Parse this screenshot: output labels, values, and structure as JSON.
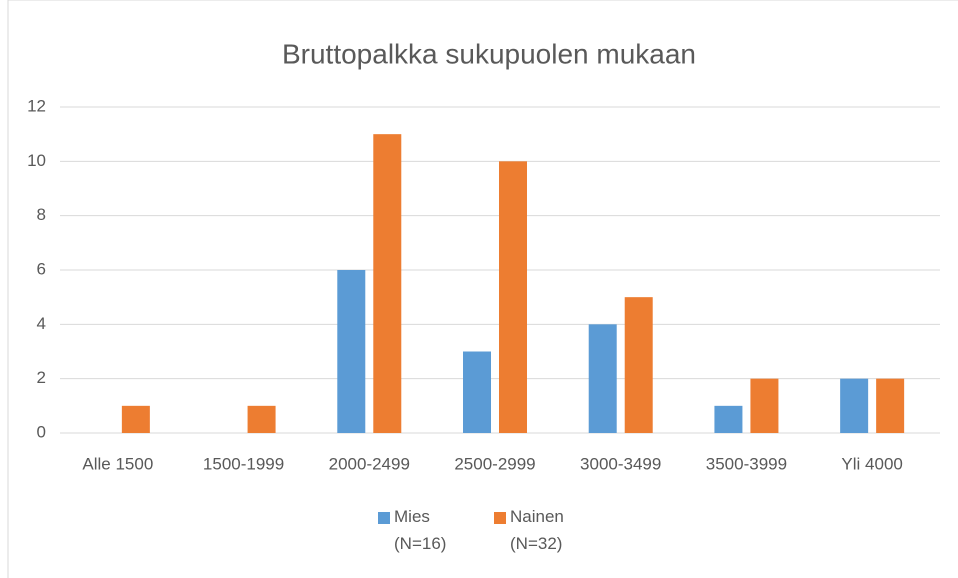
{
  "chart_data": {
    "type": "bar",
    "title": "Bruttopalkka sukupuolen mukaan",
    "categories": [
      "Alle 1500",
      "1500-1999",
      "2000-2499",
      "2500-2999",
      "3000-3499",
      "3500-3999",
      "Yli 4000"
    ],
    "series": [
      {
        "name": "Mies (N=16)",
        "color": "#5b9bd5",
        "values": [
          0,
          0,
          6,
          3,
          4,
          1,
          2
        ]
      },
      {
        "name": "Nainen (N=32)",
        "color": "#ed7d31",
        "values": [
          1,
          1,
          11,
          10,
          5,
          2,
          2
        ]
      }
    ],
    "ylim": [
      0,
      12
    ],
    "yticks": [
      0,
      2,
      4,
      6,
      8,
      10,
      12
    ],
    "grid": true,
    "legend": "bottom"
  }
}
